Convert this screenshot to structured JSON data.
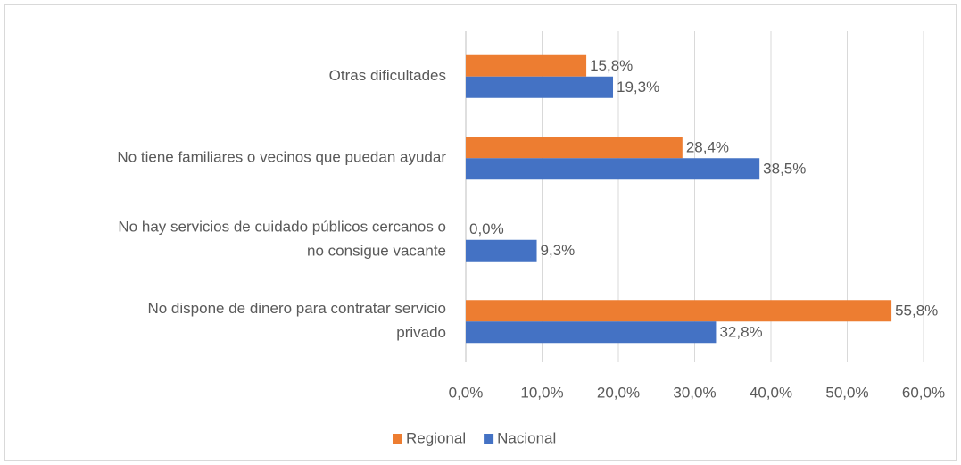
{
  "chart_data": {
    "type": "bar",
    "orientation": "horizontal",
    "categories": [
      "Otras dificultades",
      "No tiene familiares o vecinos que puedan ayudar",
      "No hay servicios de cuidado públicos cercanos o\nno consigue vacante",
      "No dispone de dinero para contratar servicio\nprivado"
    ],
    "series": [
      {
        "name": "Regional",
        "color": "#ed7d31",
        "values": [
          15.8,
          28.4,
          0.0,
          55.8
        ],
        "value_labels": [
          "15,8%",
          "28,4%",
          "0,0%",
          "55,8%"
        ]
      },
      {
        "name": "Nacional",
        "color": "#4472c4",
        "values": [
          19.3,
          38.5,
          9.3,
          32.8
        ],
        "value_labels": [
          "19,3%",
          "38,5%",
          "9,3%",
          "32,8%"
        ]
      }
    ],
    "xlim": [
      0,
      60
    ],
    "xticks": [
      {
        "value": 0,
        "label": "0,0%"
      },
      {
        "value": 10,
        "label": "10,0%"
      },
      {
        "value": 20,
        "label": "20,0%"
      },
      {
        "value": 30,
        "label": "30,0%"
      },
      {
        "value": 40,
        "label": "40,0%"
      },
      {
        "value": 50,
        "label": "50,0%"
      },
      {
        "value": 60,
        "label": "60,0%"
      }
    ],
    "grid": true,
    "legend": "bottom"
  }
}
